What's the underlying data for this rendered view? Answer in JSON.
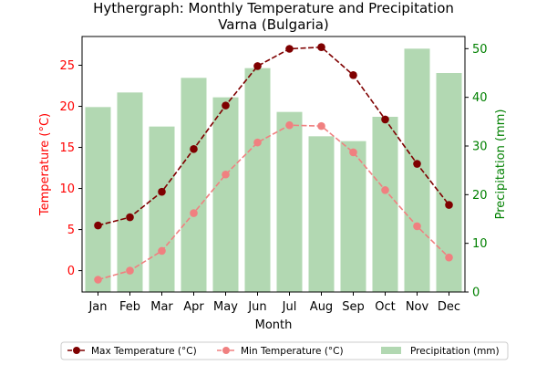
{
  "chart_data": {
    "type": "bar+line",
    "title_line1": "Hythergraph: Monthly Temperature and Precipitation",
    "title_line2": "Varna (Bulgaria)",
    "xlabel": "Month",
    "ylabel_left": "Temperature (°C)",
    "ylabel_right": "Precipitation (mm)",
    "categories": [
      "Jan",
      "Feb",
      "Mar",
      "Apr",
      "May",
      "Jun",
      "Jul",
      "Aug",
      "Sep",
      "Oct",
      "Nov",
      "Dec"
    ],
    "temp_ylim": [
      -2.6,
      28.5
    ],
    "temp_ticks": [
      0,
      5,
      10,
      15,
      20,
      25
    ],
    "precip_ylim": [
      0,
      52.5
    ],
    "precip_ticks": [
      0,
      10,
      20,
      30,
      40,
      50
    ],
    "series": [
      {
        "name": "Max Temperature (°C)",
        "axis": "left",
        "kind": "line",
        "color": "#7f0000",
        "style": "dashed",
        "values": [
          5.5,
          6.5,
          9.6,
          14.8,
          20.1,
          24.9,
          27.0,
          27.2,
          23.8,
          18.4,
          13.0,
          8.0
        ]
      },
      {
        "name": "Min Temperature (°C)",
        "axis": "left",
        "kind": "line",
        "color": "#f08080",
        "style": "dashed",
        "values": [
          -1.1,
          0.0,
          2.4,
          7.0,
          11.7,
          15.6,
          17.7,
          17.6,
          14.4,
          9.8,
          5.4,
          1.6
        ]
      },
      {
        "name": "Precipitation (mm)",
        "axis": "right",
        "kind": "bar",
        "color": "#b2d8b2",
        "values": [
          38,
          41,
          34,
          44,
          40,
          46,
          37,
          32,
          31,
          36,
          50,
          45
        ]
      }
    ],
    "left_axis_color": "#ff0000",
    "right_axis_color": "#008000",
    "legend_position": "bottom-center"
  }
}
